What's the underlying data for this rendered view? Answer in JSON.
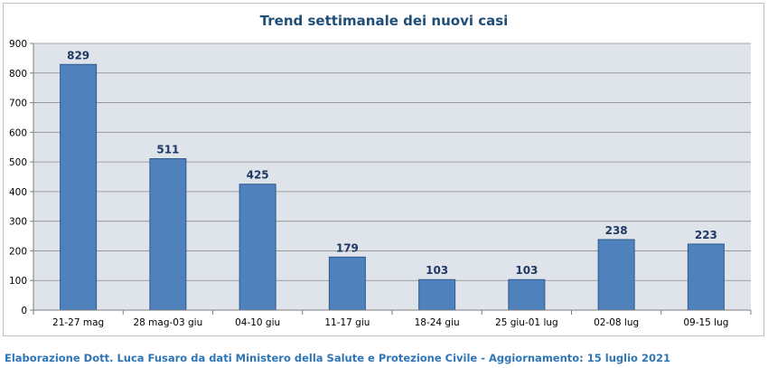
{
  "chart_data": {
    "type": "bar",
    "title": "Trend settimanale dei nuovi casi",
    "categories": [
      "21-27 mag",
      "28 mag-03 giu",
      "04-10 giu",
      "11-17 giu",
      "18-24 giu",
      "25 giu-01 lug",
      "02-08 lug",
      "09-15 lug"
    ],
    "values": [
      829,
      511,
      425,
      179,
      103,
      103,
      238,
      223
    ],
    "ylim": [
      0,
      900
    ],
    "yticks": [
      0,
      100,
      200,
      300,
      400,
      500,
      600,
      700,
      800,
      900
    ],
    "grid": true,
    "legend": "none",
    "bar_color": "#4f81bd",
    "bar_edge_color": "#2f5b8f",
    "plot_background": "#dfe3ea",
    "label_color": "#1f3864"
  },
  "footer": {
    "credit": "Elaborazione Dott. Luca Fusaro da dati Ministero della Salute e Protezione Civile - Aggiornamento: 15 luglio 2021"
  }
}
